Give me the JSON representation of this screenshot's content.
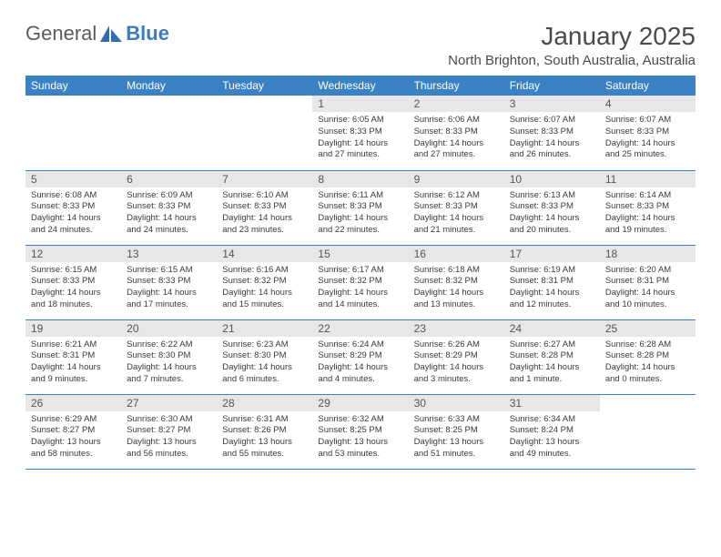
{
  "logo": {
    "text1": "General",
    "text2": "Blue"
  },
  "title": "January 2025",
  "location": "North Brighton, South Australia, Australia",
  "colors": {
    "header_bg": "#3a82c4",
    "header_text": "#ffffff",
    "daynum_bg": "#e7e7e7",
    "border": "#3a82c4",
    "text": "#3a3a3a",
    "logo_gray": "#5b5b5b",
    "logo_blue": "#3a7ebf"
  },
  "dayHeaders": [
    "Sunday",
    "Monday",
    "Tuesday",
    "Wednesday",
    "Thursday",
    "Friday",
    "Saturday"
  ],
  "weeks": [
    [
      {
        "n": "",
        "lines": []
      },
      {
        "n": "",
        "lines": []
      },
      {
        "n": "",
        "lines": []
      },
      {
        "n": "1",
        "lines": [
          "Sunrise: 6:05 AM",
          "Sunset: 8:33 PM",
          "Daylight: 14 hours",
          "and 27 minutes."
        ]
      },
      {
        "n": "2",
        "lines": [
          "Sunrise: 6:06 AM",
          "Sunset: 8:33 PM",
          "Daylight: 14 hours",
          "and 27 minutes."
        ]
      },
      {
        "n": "3",
        "lines": [
          "Sunrise: 6:07 AM",
          "Sunset: 8:33 PM",
          "Daylight: 14 hours",
          "and 26 minutes."
        ]
      },
      {
        "n": "4",
        "lines": [
          "Sunrise: 6:07 AM",
          "Sunset: 8:33 PM",
          "Daylight: 14 hours",
          "and 25 minutes."
        ]
      }
    ],
    [
      {
        "n": "5",
        "lines": [
          "Sunrise: 6:08 AM",
          "Sunset: 8:33 PM",
          "Daylight: 14 hours",
          "and 24 minutes."
        ]
      },
      {
        "n": "6",
        "lines": [
          "Sunrise: 6:09 AM",
          "Sunset: 8:33 PM",
          "Daylight: 14 hours",
          "and 24 minutes."
        ]
      },
      {
        "n": "7",
        "lines": [
          "Sunrise: 6:10 AM",
          "Sunset: 8:33 PM",
          "Daylight: 14 hours",
          "and 23 minutes."
        ]
      },
      {
        "n": "8",
        "lines": [
          "Sunrise: 6:11 AM",
          "Sunset: 8:33 PM",
          "Daylight: 14 hours",
          "and 22 minutes."
        ]
      },
      {
        "n": "9",
        "lines": [
          "Sunrise: 6:12 AM",
          "Sunset: 8:33 PM",
          "Daylight: 14 hours",
          "and 21 minutes."
        ]
      },
      {
        "n": "10",
        "lines": [
          "Sunrise: 6:13 AM",
          "Sunset: 8:33 PM",
          "Daylight: 14 hours",
          "and 20 minutes."
        ]
      },
      {
        "n": "11",
        "lines": [
          "Sunrise: 6:14 AM",
          "Sunset: 8:33 PM",
          "Daylight: 14 hours",
          "and 19 minutes."
        ]
      }
    ],
    [
      {
        "n": "12",
        "lines": [
          "Sunrise: 6:15 AM",
          "Sunset: 8:33 PM",
          "Daylight: 14 hours",
          "and 18 minutes."
        ]
      },
      {
        "n": "13",
        "lines": [
          "Sunrise: 6:15 AM",
          "Sunset: 8:33 PM",
          "Daylight: 14 hours",
          "and 17 minutes."
        ]
      },
      {
        "n": "14",
        "lines": [
          "Sunrise: 6:16 AM",
          "Sunset: 8:32 PM",
          "Daylight: 14 hours",
          "and 15 minutes."
        ]
      },
      {
        "n": "15",
        "lines": [
          "Sunrise: 6:17 AM",
          "Sunset: 8:32 PM",
          "Daylight: 14 hours",
          "and 14 minutes."
        ]
      },
      {
        "n": "16",
        "lines": [
          "Sunrise: 6:18 AM",
          "Sunset: 8:32 PM",
          "Daylight: 14 hours",
          "and 13 minutes."
        ]
      },
      {
        "n": "17",
        "lines": [
          "Sunrise: 6:19 AM",
          "Sunset: 8:31 PM",
          "Daylight: 14 hours",
          "and 12 minutes."
        ]
      },
      {
        "n": "18",
        "lines": [
          "Sunrise: 6:20 AM",
          "Sunset: 8:31 PM",
          "Daylight: 14 hours",
          "and 10 minutes."
        ]
      }
    ],
    [
      {
        "n": "19",
        "lines": [
          "Sunrise: 6:21 AM",
          "Sunset: 8:31 PM",
          "Daylight: 14 hours",
          "and 9 minutes."
        ]
      },
      {
        "n": "20",
        "lines": [
          "Sunrise: 6:22 AM",
          "Sunset: 8:30 PM",
          "Daylight: 14 hours",
          "and 7 minutes."
        ]
      },
      {
        "n": "21",
        "lines": [
          "Sunrise: 6:23 AM",
          "Sunset: 8:30 PM",
          "Daylight: 14 hours",
          "and 6 minutes."
        ]
      },
      {
        "n": "22",
        "lines": [
          "Sunrise: 6:24 AM",
          "Sunset: 8:29 PM",
          "Daylight: 14 hours",
          "and 4 minutes."
        ]
      },
      {
        "n": "23",
        "lines": [
          "Sunrise: 6:26 AM",
          "Sunset: 8:29 PM",
          "Daylight: 14 hours",
          "and 3 minutes."
        ]
      },
      {
        "n": "24",
        "lines": [
          "Sunrise: 6:27 AM",
          "Sunset: 8:28 PM",
          "Daylight: 14 hours",
          "and 1 minute."
        ]
      },
      {
        "n": "25",
        "lines": [
          "Sunrise: 6:28 AM",
          "Sunset: 8:28 PM",
          "Daylight: 14 hours",
          "and 0 minutes."
        ]
      }
    ],
    [
      {
        "n": "26",
        "lines": [
          "Sunrise: 6:29 AM",
          "Sunset: 8:27 PM",
          "Daylight: 13 hours",
          "and 58 minutes."
        ]
      },
      {
        "n": "27",
        "lines": [
          "Sunrise: 6:30 AM",
          "Sunset: 8:27 PM",
          "Daylight: 13 hours",
          "and 56 minutes."
        ]
      },
      {
        "n": "28",
        "lines": [
          "Sunrise: 6:31 AM",
          "Sunset: 8:26 PM",
          "Daylight: 13 hours",
          "and 55 minutes."
        ]
      },
      {
        "n": "29",
        "lines": [
          "Sunrise: 6:32 AM",
          "Sunset: 8:25 PM",
          "Daylight: 13 hours",
          "and 53 minutes."
        ]
      },
      {
        "n": "30",
        "lines": [
          "Sunrise: 6:33 AM",
          "Sunset: 8:25 PM",
          "Daylight: 13 hours",
          "and 51 minutes."
        ]
      },
      {
        "n": "31",
        "lines": [
          "Sunrise: 6:34 AM",
          "Sunset: 8:24 PM",
          "Daylight: 13 hours",
          "and 49 minutes."
        ]
      },
      {
        "n": "",
        "lines": []
      }
    ]
  ]
}
